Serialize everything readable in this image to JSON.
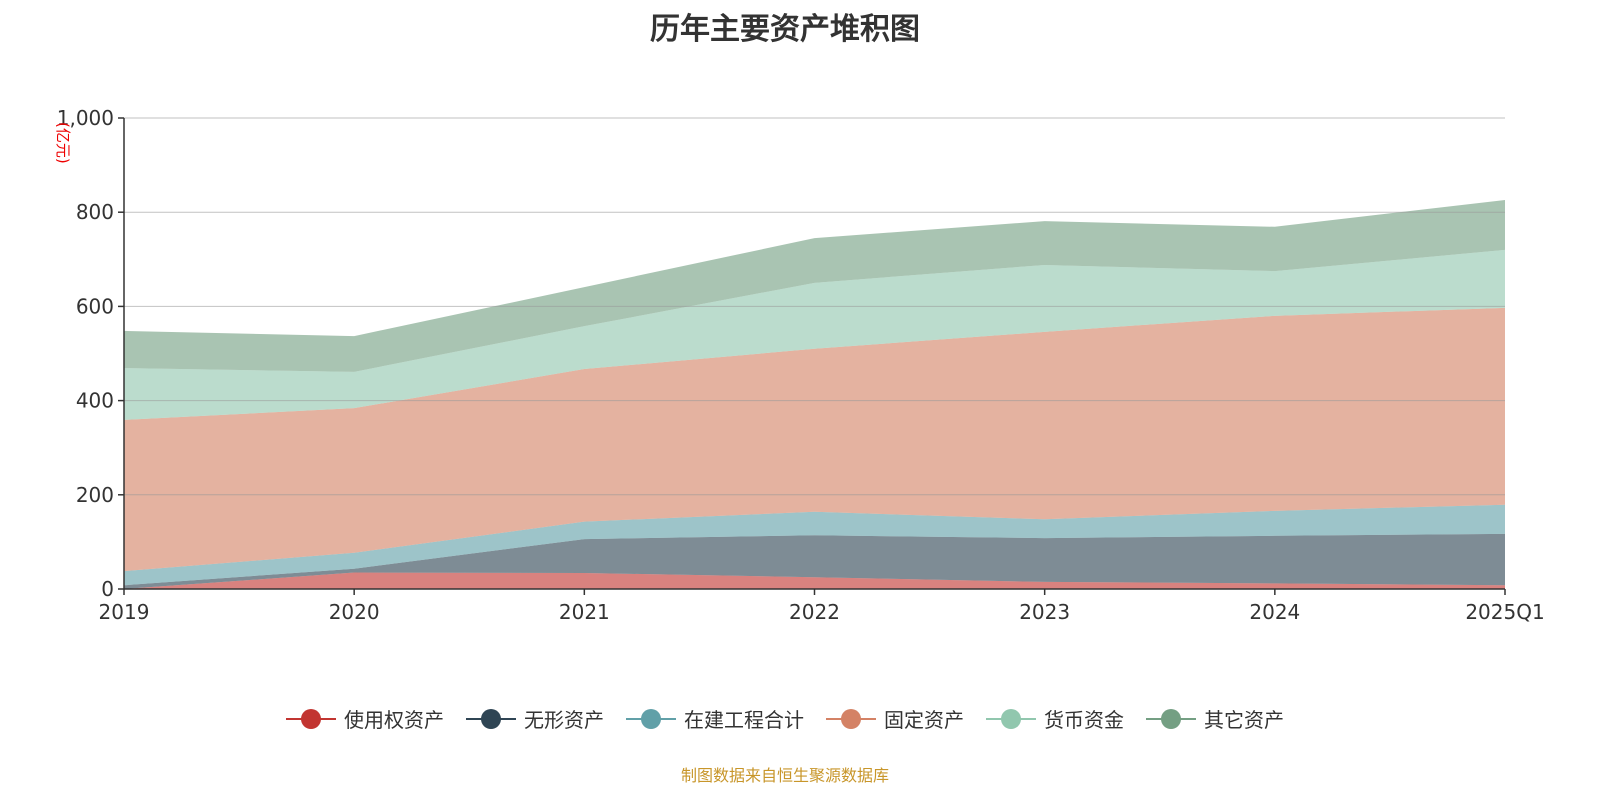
{
  "chart_data": {
    "type": "area",
    "stacked": true,
    "title": "历年主要资产堆积图",
    "ylabel": "(亿元)",
    "xlabel": "",
    "ylim": [
      0,
      1000
    ],
    "yticks": [
      "0",
      "200",
      "400",
      "600",
      "800",
      "1,000"
    ],
    "ytick_values": [
      0,
      200,
      400,
      600,
      800,
      1000
    ],
    "grid": true,
    "legend_position": "bottom",
    "categories": [
      "2019",
      "2020",
      "2021",
      "2022",
      "2023",
      "2024",
      "2025Q1"
    ],
    "series": [
      {
        "name": "使用权资产",
        "color": "#c23531",
        "values": [
          0,
          35,
          34,
          25,
          15,
          12,
          8
        ]
      },
      {
        "name": "无形资产",
        "color": "#2f4554",
        "values": [
          8,
          8,
          72,
          89,
          93,
          101,
          109
        ]
      },
      {
        "name": "在建工程合计",
        "color": "#61a0a8",
        "values": [
          30,
          34,
          37,
          50,
          40,
          53,
          62
        ]
      },
      {
        "name": "固定资产",
        "color": "#d48265",
        "values": [
          321,
          307,
          324,
          346,
          398,
          414,
          418
        ]
      },
      {
        "name": "货币资金",
        "color": "#91c7ae",
        "values": [
          110,
          77,
          91,
          140,
          142,
          95,
          123
        ]
      },
      {
        "name": "其它资产",
        "color": "#749f83",
        "values": [
          79,
          76,
          83,
          95,
          93,
          94,
          106
        ]
      }
    ]
  },
  "source": "制图数据来自恒生聚源数据库"
}
